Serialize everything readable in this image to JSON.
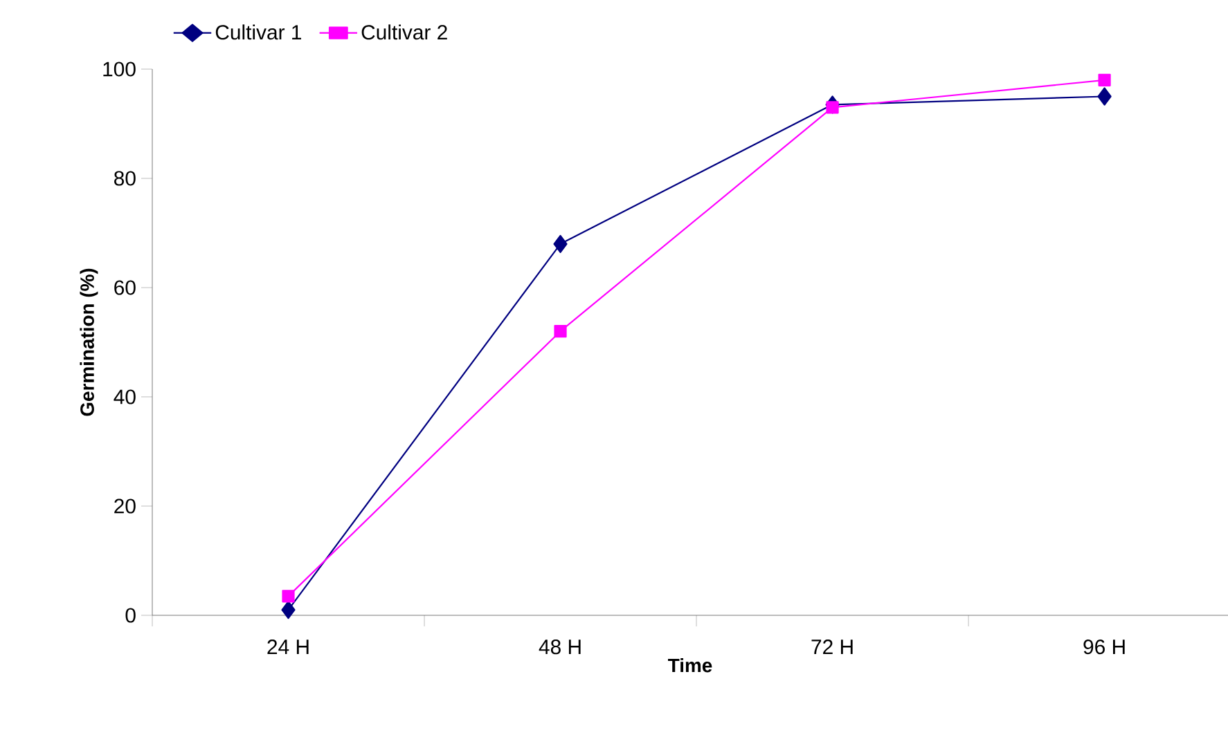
{
  "chart_data": {
    "type": "line",
    "xlabel": "Time",
    "ylabel": "Germination (%)",
    "categories": [
      "24 H",
      "48 H",
      "72 H",
      "96 H"
    ],
    "series": [
      {
        "name": "Cultivar 1",
        "color": "#000080",
        "marker": "diamond",
        "values": [
          1,
          68,
          93.5,
          95
        ]
      },
      {
        "name": "Cultivar 2",
        "color": "#ff00ff",
        "marker": "square",
        "values": [
          3.5,
          52,
          93,
          98
        ]
      }
    ],
    "ylim": [
      0,
      100
    ],
    "yticks": [
      0,
      20,
      40,
      60,
      80,
      100
    ],
    "grid": false,
    "legend": "top left",
    "line_style": "solid"
  }
}
